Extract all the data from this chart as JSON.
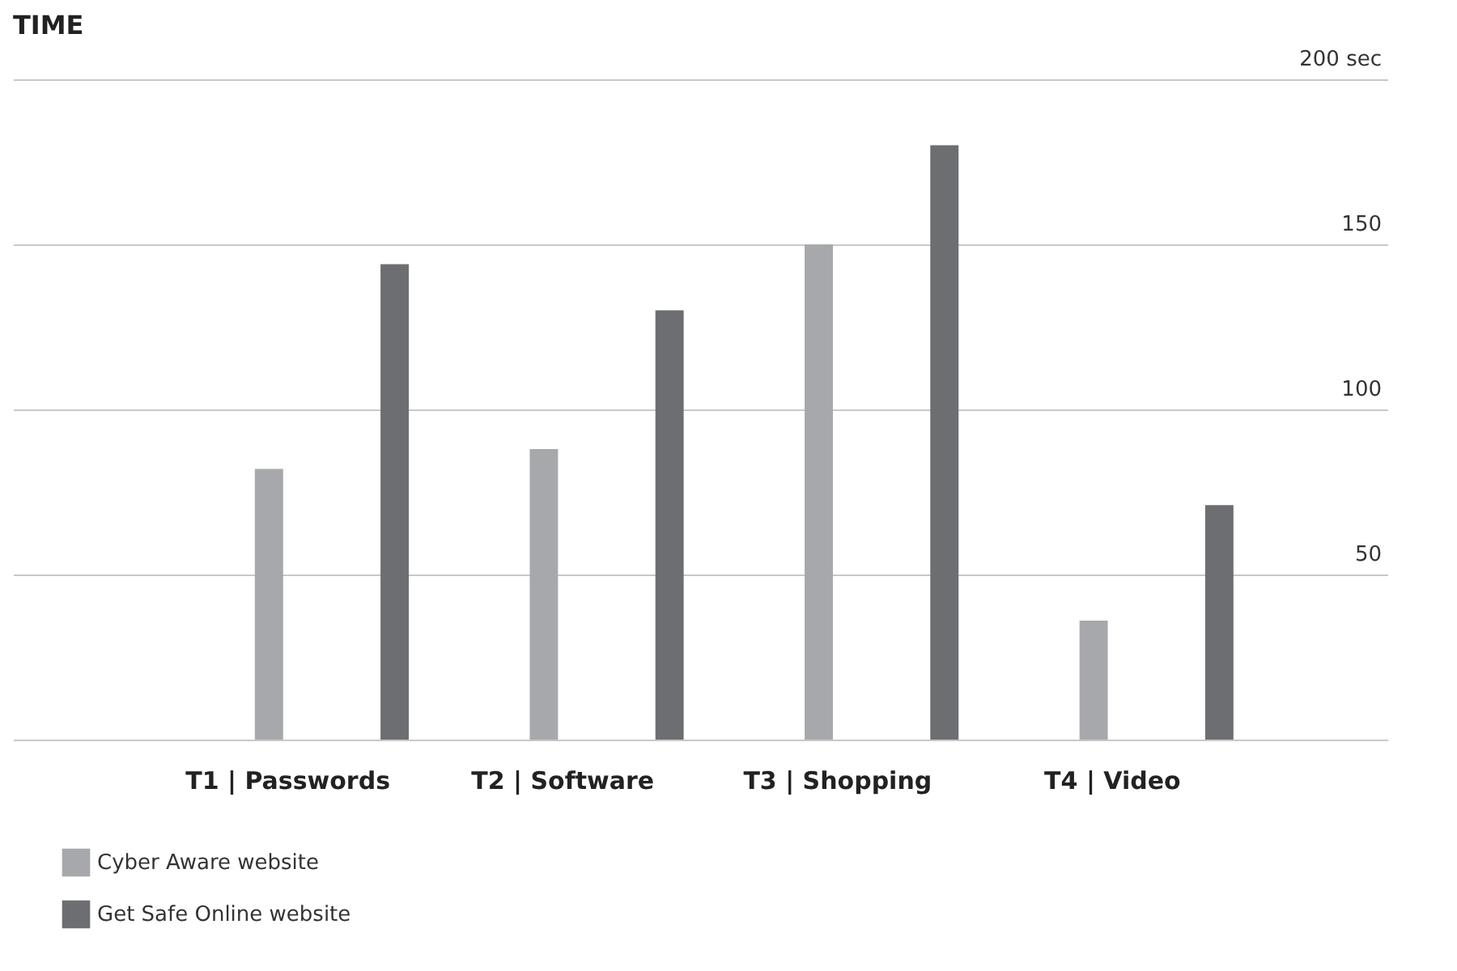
{
  "chart_data": {
    "type": "bar",
    "title": "TIME",
    "categories": [
      "T1 | Passwords",
      "T2 | Software",
      "T3 | Shopping",
      "T4 | Video"
    ],
    "series": [
      {
        "name": "Cyber Aware website",
        "color": "#a7a8ab",
        "values": [
          82,
          88,
          150,
          36
        ]
      },
      {
        "name": "Get Safe Online website",
        "color": "#6d6e71",
        "values": [
          144,
          130,
          180,
          71
        ]
      }
    ],
    "ylim": [
      0,
      200
    ],
    "yticks": [
      {
        "value": 0,
        "label": null
      },
      50,
      100,
      150,
      {
        "value": 200,
        "label": "200 sec"
      }
    ],
    "grid": "y",
    "legend": "bottom left"
  }
}
